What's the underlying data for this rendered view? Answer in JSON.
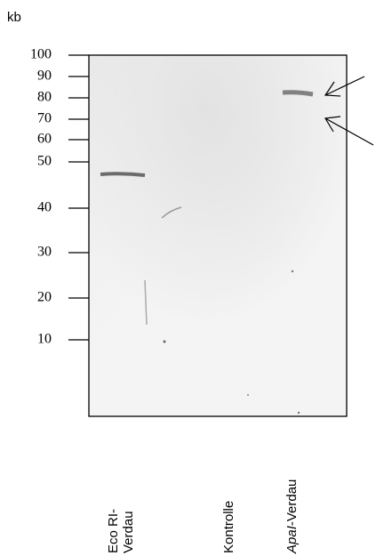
{
  "unit_label": "kb",
  "markers": [
    "100",
    "90",
    "80",
    "70",
    "60",
    "50",
    "40",
    "30",
    "20",
    "10"
  ],
  "lanes": [
    {
      "lines": [
        "Eco RI-",
        "Verdau"
      ]
    },
    {
      "lines": [
        "Kontrolle"
      ]
    },
    {
      "italic": "ApaI",
      "rest": "-Verdau"
    }
  ]
}
